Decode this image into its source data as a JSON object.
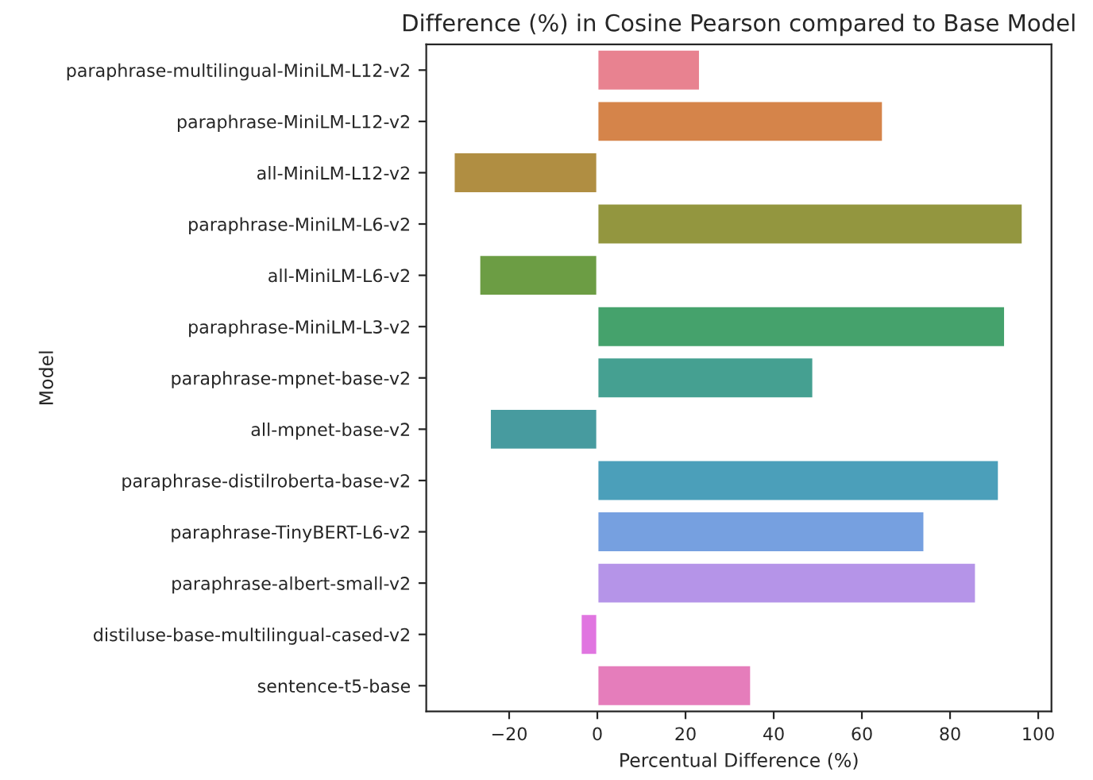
{
  "chart_data": {
    "type": "bar",
    "orientation": "horizontal",
    "title": "Difference (%) in Cosine Pearson compared to Base Model",
    "xlabel": "Percentual Difference (%)",
    "ylabel": "Model",
    "categories": [
      "paraphrase-multilingual-MiniLM-L12-v2",
      "paraphrase-MiniLM-L12-v2",
      "all-MiniLM-L12-v2",
      "paraphrase-MiniLM-L6-v2",
      "all-MiniLM-L6-v2",
      "paraphrase-MiniLM-L3-v2",
      "paraphrase-mpnet-base-v2",
      "all-mpnet-base-v2",
      "paraphrase-distilroberta-base-v2",
      "paraphrase-TinyBERT-L6-v2",
      "paraphrase-albert-small-v2",
      "distiluse-base-multilingual-cased-v2",
      "sentence-t5-base"
    ],
    "values": [
      23.3,
      64.8,
      -32.6,
      96.5,
      -26.8,
      92.5,
      49.0,
      -24.4,
      91.1,
      74.2,
      85.9,
      -3.8,
      34.9
    ],
    "colors": [
      "#e88290",
      "#d5844a",
      "#b08e42",
      "#93963f",
      "#6c9d44",
      "#45a26c",
      "#45a091",
      "#479b9f",
      "#4b9fba",
      "#76a0e0",
      "#b594e8",
      "#e075e0",
      "#e57dbb"
    ],
    "xlim": [
      -38.8,
      103.0
    ],
    "xticks": [
      {
        "value": -20,
        "label": "−20"
      },
      0,
      20,
      40,
      60,
      80,
      100
    ],
    "grid": false
  }
}
